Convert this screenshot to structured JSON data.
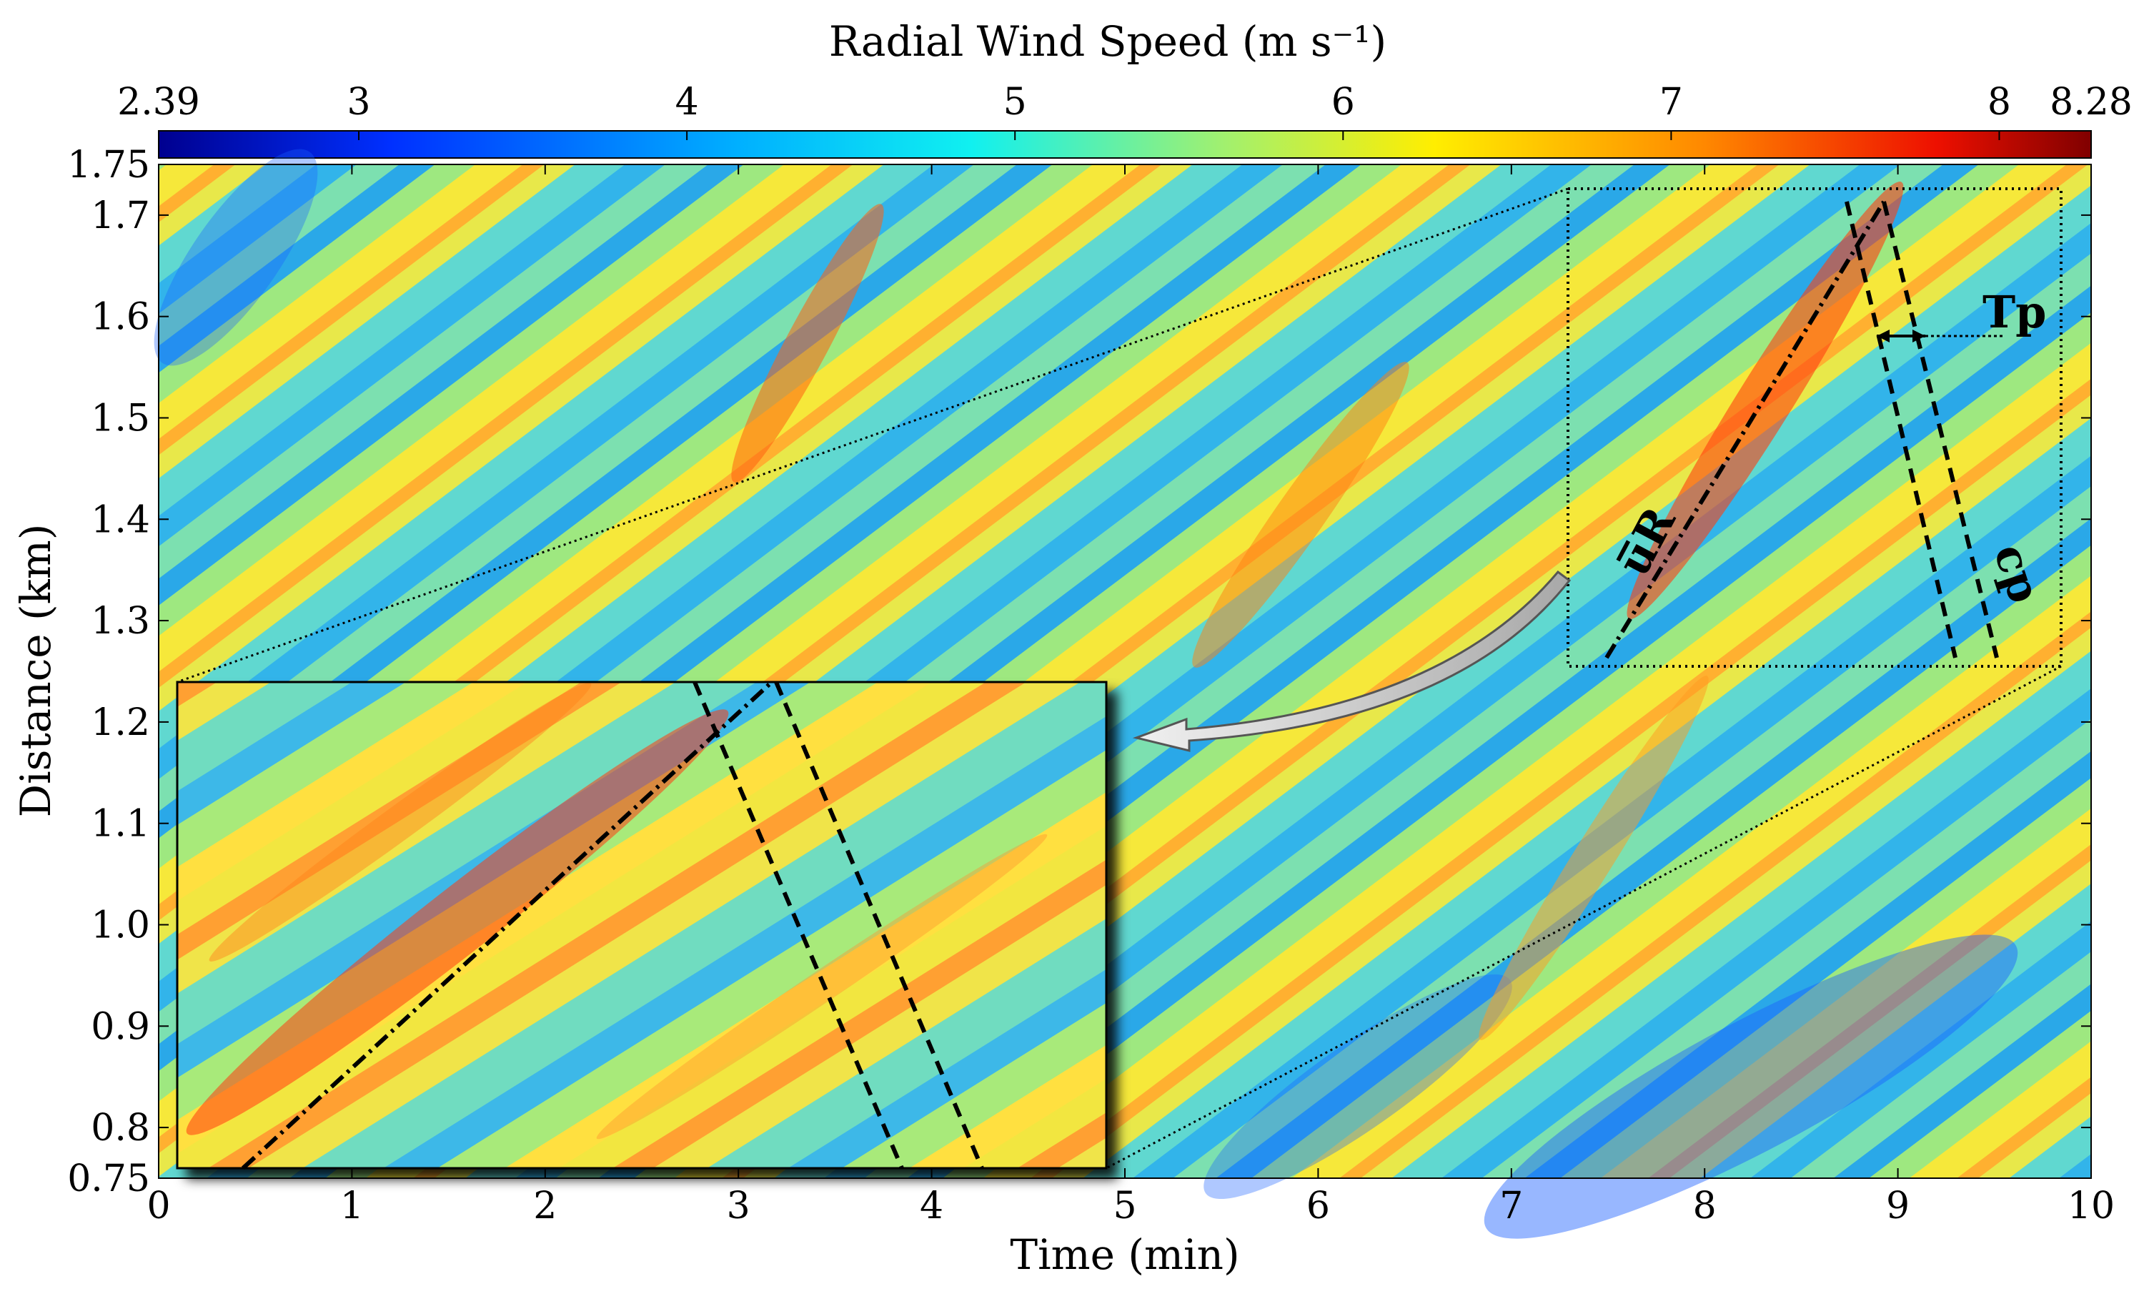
{
  "chart_data": {
    "type": "heatmap",
    "title": "Radial Wind Speed (m s⁻¹)",
    "xlabel": "Time (min)",
    "ylabel": "Distance (km)",
    "xlim": [
      0,
      10
    ],
    "ylim": [
      0.75,
      1.75
    ],
    "x_ticks": [
      "0",
      "1",
      "2",
      "3",
      "4",
      "5",
      "6",
      "7",
      "8",
      "9",
      "10"
    ],
    "y_ticks": [
      "0.75",
      "0.8",
      "0.9",
      "1.0",
      "1.1",
      "1.2",
      "1.3",
      "1.4",
      "1.5",
      "1.6",
      "1.7",
      "1.75"
    ],
    "colorbar": {
      "label": "Radial Wind Speed (m s⁻¹)",
      "min": 2.39,
      "max": 8.28,
      "ticks": [
        "2.39",
        "3",
        "4",
        "5",
        "6",
        "7",
        "8",
        "8.28"
      ],
      "colormap": "jet"
    },
    "annotations": {
      "mean_velocity_label": "u̅R",
      "period_label": "Tp",
      "phase_speed_label": "cp"
    },
    "zoom_region": {
      "time_range": [
        7.3,
        9.85
      ],
      "distance_range": [
        1.25,
        1.725
      ]
    },
    "ridges": {
      "mean_velocity_line": {
        "t": [
          7.45,
          8.95
        ],
        "d": [
          1.255,
          1.72
        ]
      },
      "dashed_line_1": {
        "t": [
          8.75,
          9.3
        ],
        "d": [
          1.72,
          1.255
        ]
      },
      "dashed_line_2": {
        "t": [
          8.95,
          9.5
        ],
        "d": [
          1.72,
          1.255
        ]
      }
    }
  }
}
